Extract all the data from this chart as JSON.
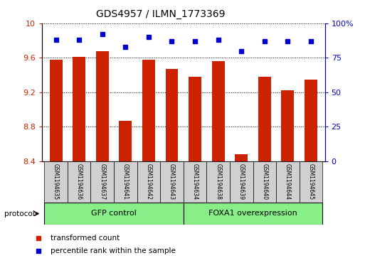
{
  "title": "GDS4957 / ILMN_1773369",
  "samples": [
    "GSM1194635",
    "GSM1194636",
    "GSM1194637",
    "GSM1194641",
    "GSM1194642",
    "GSM1194643",
    "GSM1194634",
    "GSM1194638",
    "GSM1194639",
    "GSM1194640",
    "GSM1194644",
    "GSM1194645"
  ],
  "bar_values": [
    9.58,
    9.61,
    9.68,
    8.87,
    9.58,
    9.47,
    9.38,
    9.56,
    8.48,
    9.38,
    9.22,
    9.35
  ],
  "percentile_values": [
    88,
    88,
    92,
    83,
    90,
    87,
    87,
    88,
    80,
    87,
    87,
    87
  ],
  "bar_bottom": 8.4,
  "ylim_left": [
    8.4,
    10.0
  ],
  "ylim_right": [
    0,
    100
  ],
  "yticks_left": [
    8.4,
    8.8,
    9.2,
    9.6,
    10.0
  ],
  "ytick_labels_left": [
    "8.4",
    "8.8",
    "9.2",
    "9.6",
    "10"
  ],
  "yticks_right": [
    0,
    25,
    50,
    75,
    100
  ],
  "ytick_labels_right": [
    "0",
    "25",
    "50",
    "75",
    "100%"
  ],
  "bar_color": "#cc2200",
  "dot_color": "#0000cc",
  "group1_label": "GFP control",
  "group2_label": "FOXA1 overexpression",
  "group1_count": 6,
  "group2_count": 6,
  "group_color": "#88ee88",
  "protocol_label": "protocol",
  "legend_bar_label": "transformed count",
  "legend_dot_label": "percentile rank within the sample",
  "left_tick_color": "#cc2200",
  "right_tick_color": "#0000cc",
  "sample_box_color": "#d0d0d0"
}
